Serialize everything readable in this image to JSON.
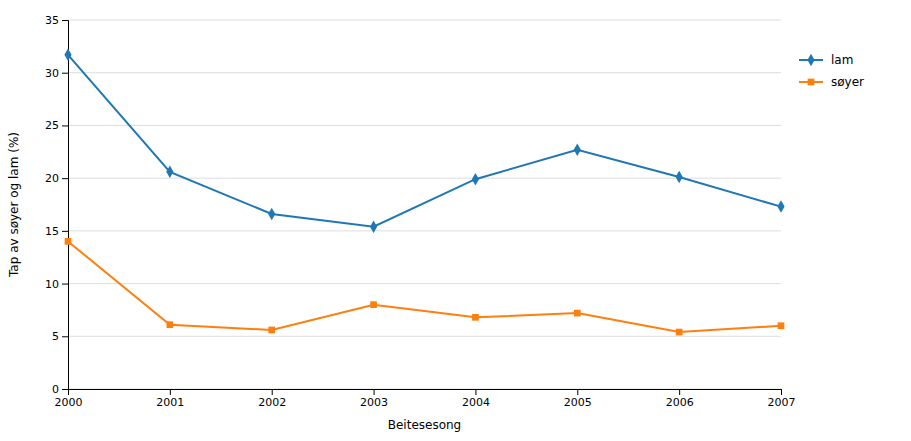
{
  "chart_data": {
    "type": "line",
    "x": [
      2000,
      2001,
      2002,
      2003,
      2004,
      2005,
      2006,
      2007
    ],
    "series": [
      {
        "name": "lam",
        "values": [
          31.7,
          20.6,
          16.6,
          15.4,
          19.9,
          22.7,
          20.1,
          17.3
        ],
        "marker": "diamond"
      },
      {
        "name": "søyer",
        "values": [
          14.0,
          6.1,
          5.6,
          8.0,
          6.8,
          7.2,
          5.4,
          6.0
        ],
        "marker": "square"
      }
    ],
    "xlabel": "Beitesesong",
    "ylabel": "Tap av søyer og lam (%)",
    "xlim": [
      2000,
      2007
    ],
    "xticks": [
      2000,
      2001,
      2002,
      2003,
      2004,
      2005,
      2006,
      2007
    ],
    "ylim": [
      0,
      35
    ],
    "yticks": [
      0,
      5,
      10,
      15,
      20,
      25,
      30,
      35
    ],
    "grid": true,
    "legend": "right"
  }
}
